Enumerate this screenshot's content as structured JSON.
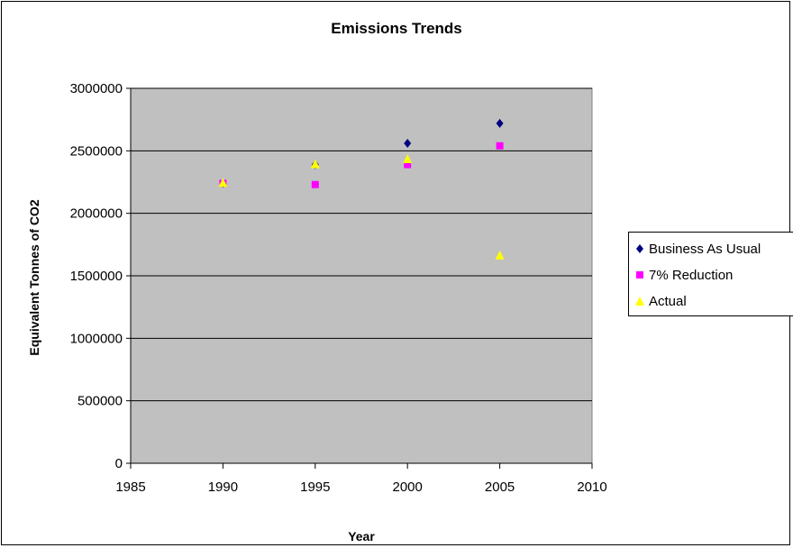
{
  "chart_data": {
    "type": "scatter",
    "title": "Emissions Trends",
    "xlabel": "Year",
    "ylabel": "Equivalent Tonnes of CO2",
    "xlim": [
      1985,
      2010
    ],
    "ylim": [
      0,
      3000000
    ],
    "x_ticks": [
      "1985",
      "1990",
      "1995",
      "2000",
      "2005",
      "2010"
    ],
    "y_ticks": [
      "0",
      "500000",
      "1000000",
      "1500000",
      "2000000",
      "2500000",
      "3000000"
    ],
    "grid": "horizontal",
    "plot_background": "#c0c0c0",
    "legend_position": "right",
    "series": [
      {
        "name": "Business As Usual",
        "marker": "diamond",
        "color": "#000080",
        "x": [
          1990,
          1995,
          2000,
          2005
        ],
        "y": [
          2240000,
          2390000,
          2560000,
          2720000
        ]
      },
      {
        "name": "7% Reduction",
        "marker": "square",
        "color": "#ff00ff",
        "x": [
          1990,
          1995,
          2000,
          2005
        ],
        "y": [
          2240000,
          2230000,
          2390000,
          2540000
        ]
      },
      {
        "name": "Actual",
        "marker": "triangle",
        "color": "#ffff00",
        "x": [
          1990,
          1995,
          2000,
          2005
        ],
        "y": [
          2240000,
          2390000,
          2430000,
          1660000
        ]
      }
    ]
  }
}
